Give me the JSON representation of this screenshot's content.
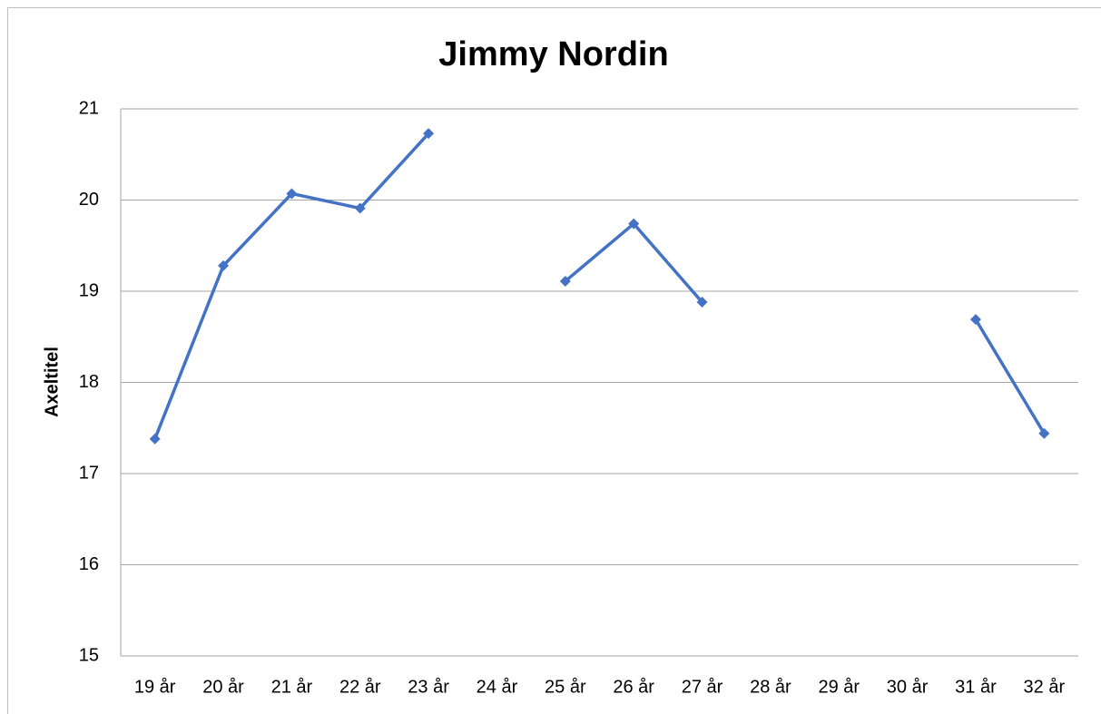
{
  "chart_data": {
    "type": "line",
    "title": "Jimmy Nordin",
    "y_label": "Axeltitel",
    "categories": [
      "19 år",
      "20 år",
      "21 år",
      "22 år",
      "23 år",
      "24 år",
      "25 år",
      "26 år",
      "27 år",
      "28 år",
      "29 år",
      "30 år",
      "31 år",
      "32 år"
    ],
    "values": [
      17.38,
      19.28,
      20.07,
      19.91,
      20.73,
      null,
      19.11,
      19.74,
      18.88,
      null,
      null,
      null,
      18.69,
      17.44
    ],
    "color": "#4472c4",
    "ylim": [
      15,
      21
    ],
    "yticks": [
      15,
      16,
      17,
      18,
      19,
      20,
      21
    ],
    "grid": true
  }
}
